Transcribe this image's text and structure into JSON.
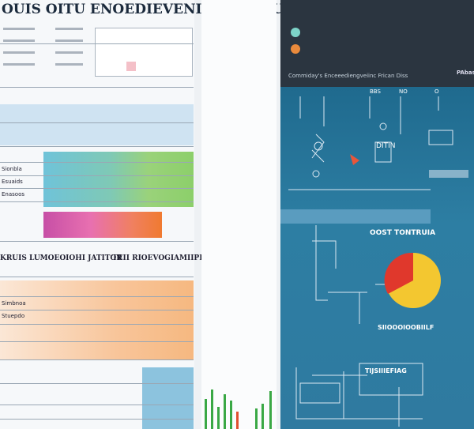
{
  "header": {
    "title": "OUIS OITU ENOEDIEVENI THOIT TURT"
  },
  "left": {
    "section_a": "KRUIS LUMOEOIOHI JATITOR",
    "section_b": "TEII RIOEVOGIAMIIPR",
    "rows": [
      "Sionbla",
      "Esuaids",
      "Enasoos",
      "Simbnoa",
      "Stuepdo"
    ]
  },
  "right": {
    "banner": "Commiday's Enceeediengveiinc Frican Diss",
    "tags": [
      "BBS",
      "NO",
      "O"
    ],
    "corner": "PAbas",
    "panel_title": "OOST TONTRUIA",
    "pie_caption": "SIIOOOIOOBIILF",
    "flow_title": "TIJSIIIEFIAG",
    "node": "DITIN"
  }
}
